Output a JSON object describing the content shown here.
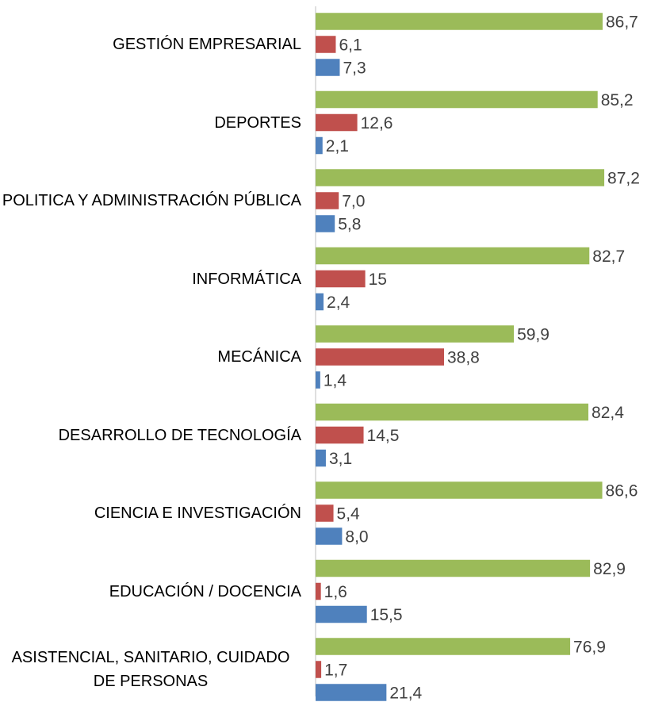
{
  "chart_data": {
    "type": "barh",
    "categories": [
      "GESTIÓN EMPRESARIAL",
      "DEPORTES",
      "POLITICA Y ADMINISTRACIÓN PÚBLICA",
      "INFORMÁTICA",
      "MECÁNICA",
      "DESARROLLO DE TECNOLOGÍA",
      "CIENCIA E INVESTIGACIÓN",
      "EDUCACIÓN / DOCENCIA",
      "ASISTENCIAL, SANITARIO, CUIDADO DE PERSONAS"
    ],
    "series": [
      {
        "color": "#9bbb59",
        "values": [
          86.7,
          85.2,
          87.2,
          82.7,
          59.9,
          82.4,
          86.6,
          82.9,
          76.9
        ],
        "value_labels": [
          "86,7",
          "85,2",
          "87,2",
          "82,7",
          "59,9",
          "82,4",
          "86,6",
          "82,9",
          "76,9"
        ]
      },
      {
        "color": "#c0504d",
        "values": [
          6.1,
          12.6,
          7.0,
          15,
          38.8,
          14.5,
          5.4,
          1.6,
          1.7
        ],
        "value_labels": [
          "6,1",
          "12,6",
          "7,0",
          "15",
          "38,8",
          "14,5",
          "5,4",
          "1,6",
          "1,7"
        ]
      },
      {
        "color": "#4f81bd",
        "values": [
          7.3,
          2.1,
          5.8,
          2.4,
          1.4,
          3.1,
          8.0,
          15.5,
          21.4
        ],
        "value_labels": [
          "7,3",
          "2,1",
          "5,8",
          "2,4",
          "1,4",
          "3,1",
          "8,0",
          "15,5",
          "21,4"
        ]
      }
    ],
    "xlim": [
      0,
      100
    ]
  }
}
